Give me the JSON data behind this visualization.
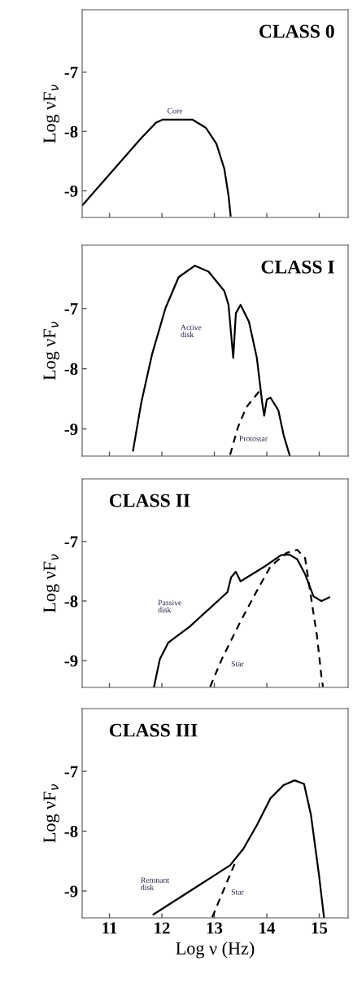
{
  "chart_data": [
    {
      "type": "line",
      "title": "CLASS 0",
      "ylabel": "Log νF$_{ν}$",
      "xlim": [
        10.48,
        15.55
      ],
      "ylim": [
        -9.45,
        -5.95
      ],
      "xticks": [
        11,
        12,
        13,
        14,
        15
      ],
      "yticks": [
        -9,
        -8,
        -7
      ],
      "tick_labels": "y",
      "grid": false,
      "series": [
        {
          "color": "#000000",
          "line_style": "solid",
          "x": [
            10.49,
            11.6,
            11.89,
            12.02,
            12.3,
            12.58,
            12.84,
            13.04,
            13.19,
            13.27,
            13.31
          ],
          "values": [
            -9.24,
            -8.12,
            -7.85,
            -7.8,
            -7.8,
            -7.8,
            -7.94,
            -8.21,
            -8.63,
            -9.08,
            -9.42
          ]
        }
      ],
      "annotations": [
        "Core"
      ]
    },
    {
      "type": "line",
      "title": "CLASS I",
      "ylabel": "Log νF$_{ν}$",
      "xlim": [
        10.48,
        15.55
      ],
      "ylim": [
        -9.45,
        -5.95
      ],
      "xticks": [
        11,
        12,
        13,
        14,
        15
      ],
      "yticks": [
        -9,
        -8,
        -7
      ],
      "tick_labels": "y",
      "grid": false,
      "series": [
        {
          "color": "#000000",
          "line_style": "solid",
          "x": [
            11.45,
            11.61,
            11.81,
            12.07,
            12.32,
            12.63,
            12.89,
            13.19,
            13.27,
            13.36,
            13.41,
            13.5,
            13.66,
            13.81,
            13.91,
            13.95,
            14.0,
            14.07,
            14.22,
            14.32,
            14.44
          ],
          "values": [
            -9.36,
            -8.55,
            -7.77,
            -6.99,
            -6.48,
            -6.29,
            -6.39,
            -6.71,
            -6.94,
            -7.82,
            -7.08,
            -6.94,
            -7.22,
            -7.82,
            -8.55,
            -8.78,
            -8.51,
            -8.48,
            -8.69,
            -9.1,
            -9.45
          ]
        },
        {
          "color": "#000000",
          "line_style": "dashed",
          "x": [
            13.3,
            13.45,
            13.61,
            13.86
          ],
          "values": [
            -9.43,
            -8.97,
            -8.64,
            -8.37
          ]
        }
      ],
      "annotations": [
        "Active\ndisk",
        "Protostar"
      ]
    },
    {
      "type": "line",
      "title": "CLASS II",
      "ylabel": "Log νF$_{ν}$",
      "xlim": [
        10.48,
        15.55
      ],
      "ylim": [
        -9.45,
        -5.95
      ],
      "xticks": [
        11,
        12,
        13,
        14,
        15
      ],
      "yticks": [
        -9,
        -8,
        -7
      ],
      "tick_labels": "y",
      "grid": false,
      "series": [
        {
          "color": "#000000",
          "line_style": "solid",
          "x": [
            11.85,
            11.96,
            12.12,
            12.53,
            13.25,
            13.32,
            13.41,
            13.5,
            13.96,
            14.27,
            14.43,
            14.58,
            14.73,
            14.89,
            15.04,
            15.19
          ],
          "values": [
            -9.44,
            -8.98,
            -8.7,
            -8.43,
            -7.85,
            -7.6,
            -7.51,
            -7.67,
            -7.42,
            -7.23,
            -7.22,
            -7.3,
            -7.55,
            -7.92,
            -8.0,
            -7.94
          ]
        },
        {
          "color": "#000000",
          "line_style": "dashed",
          "x": [
            12.92,
            13.14,
            13.5,
            13.81,
            14.07,
            14.38,
            14.58,
            14.73,
            14.84,
            14.96,
            15.04,
            15.07
          ],
          "values": [
            -9.44,
            -8.98,
            -8.34,
            -7.83,
            -7.42,
            -7.19,
            -7.14,
            -7.28,
            -7.92,
            -8.61,
            -9.26,
            -9.44
          ]
        }
      ],
      "annotations": [
        "Passive\ndisk",
        "Star"
      ]
    },
    {
      "type": "line",
      "title": "CLASS III",
      "xlabel": "Log ν (Hz)",
      "ylabel": "Log νF$_{ν}$",
      "xlim": [
        10.48,
        15.55
      ],
      "ylim": [
        -9.45,
        -5.95
      ],
      "xticks": [
        11,
        12,
        13,
        14,
        15
      ],
      "yticks": [
        -9,
        -8,
        -7
      ],
      "grid": false,
      "series": [
        {
          "color": "#000000",
          "line_style": "solid",
          "x": [
            11.84,
            12.27,
            12.84,
            13.3,
            13.55,
            13.81,
            14.07,
            14.32,
            14.53,
            14.71,
            14.84,
            14.99,
            15.09
          ],
          "values": [
            -9.39,
            -9.15,
            -8.83,
            -8.57,
            -8.3,
            -7.9,
            -7.45,
            -7.23,
            -7.15,
            -7.21,
            -7.72,
            -8.7,
            -9.44
          ]
        },
        {
          "color": "#000000",
          "line_style": "dashed",
          "x": [
            12.96,
            13.14,
            13.4
          ],
          "values": [
            -9.44,
            -9.06,
            -8.52
          ]
        }
      ],
      "annotations": [
        "Remnant\ndisk",
        "Star"
      ]
    }
  ]
}
